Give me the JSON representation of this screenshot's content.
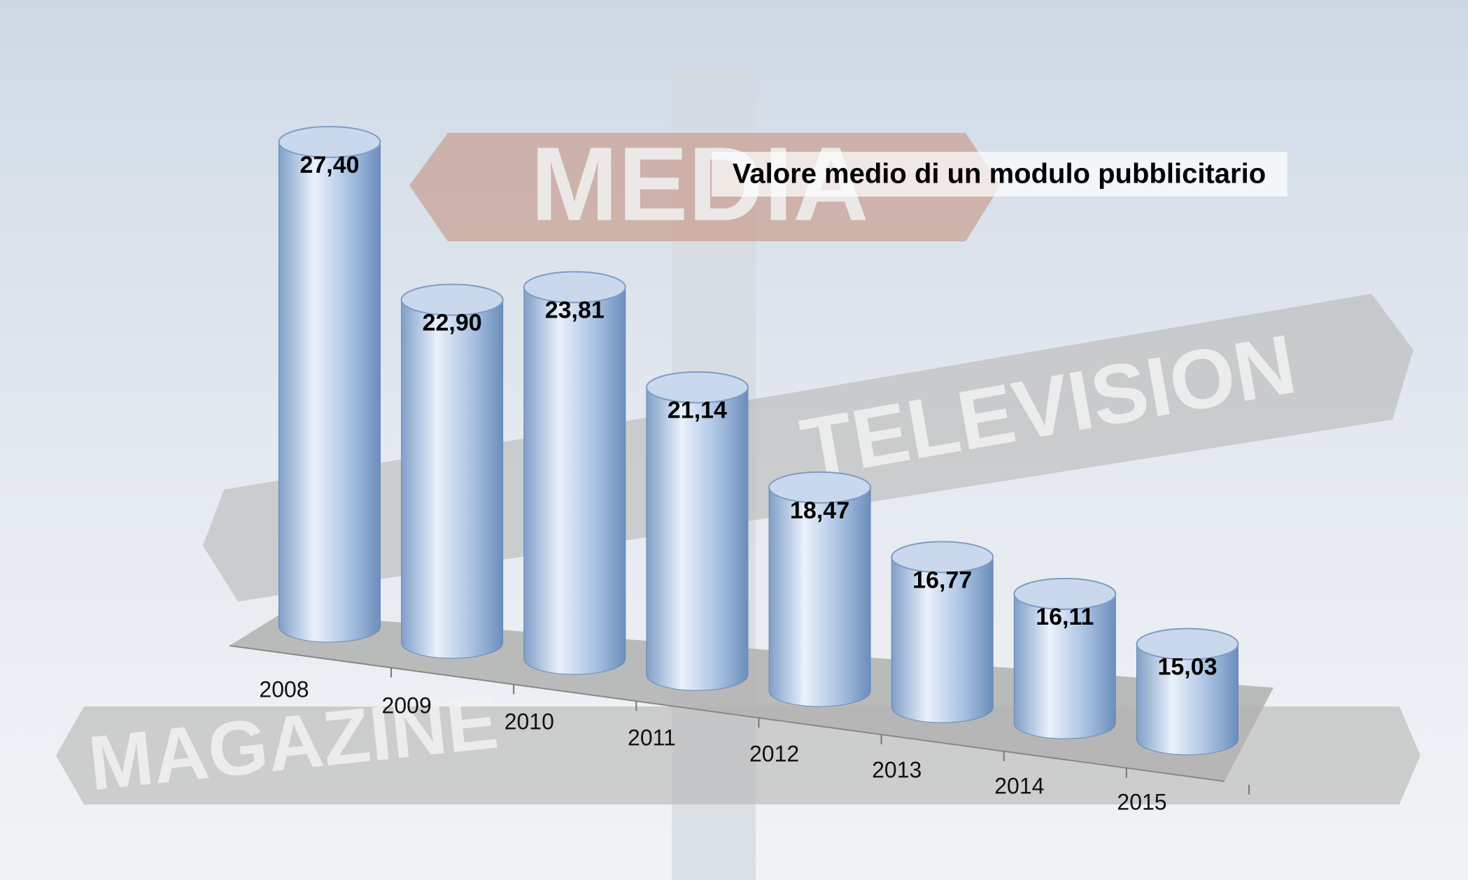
{
  "chart_data": {
    "type": "bar3d",
    "title": "Valore medio di un modulo pubblicitario",
    "categories": [
      "2008",
      "2009",
      "2010",
      "2011",
      "2012",
      "2013",
      "2014",
      "2015"
    ],
    "values": [
      27.4,
      22.9,
      23.81,
      21.14,
      18.47,
      16.77,
      16.11,
      15.03
    ],
    "value_labels": [
      "27,40",
      "22,90",
      "23,81",
      "21,14",
      "18,47",
      "16,77",
      "16,11",
      "15,03"
    ],
    "color": "#8fb0d8",
    "ylim": [
      12,
      28
    ],
    "background_signs": [
      "MEDIA",
      "TELEVISION",
      "MAGAZINE"
    ]
  }
}
